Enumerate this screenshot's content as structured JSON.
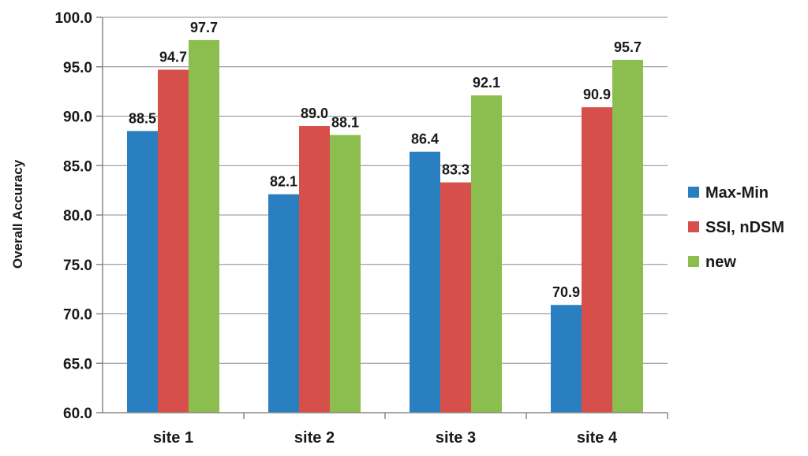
{
  "chart_data": {
    "type": "bar",
    "title": "",
    "xlabel": "",
    "ylabel": "Overall Accuracy",
    "ylim": [
      60,
      100
    ],
    "ytick_step": 5,
    "ytick_labels": [
      "60.0",
      "65.0",
      "70.0",
      "75.0",
      "80.0",
      "85.0",
      "90.0",
      "95.0",
      "100.0"
    ],
    "grid": true,
    "legend_position": "right",
    "categories": [
      "site 1",
      "site 2",
      "site 3",
      "site 4"
    ],
    "series": [
      {
        "name": "Max-Min",
        "color": "#2a7fc1",
        "values": [
          88.5,
          82.1,
          86.4,
          70.9
        ]
      },
      {
        "name": "SSI, nDSM",
        "color": "#d64f4b",
        "values": [
          94.7,
          89.0,
          83.3,
          90.9
        ]
      },
      {
        "name": "new",
        "color": "#8bbd4f",
        "values": [
          97.7,
          88.1,
          92.1,
          95.7
        ]
      }
    ]
  }
}
